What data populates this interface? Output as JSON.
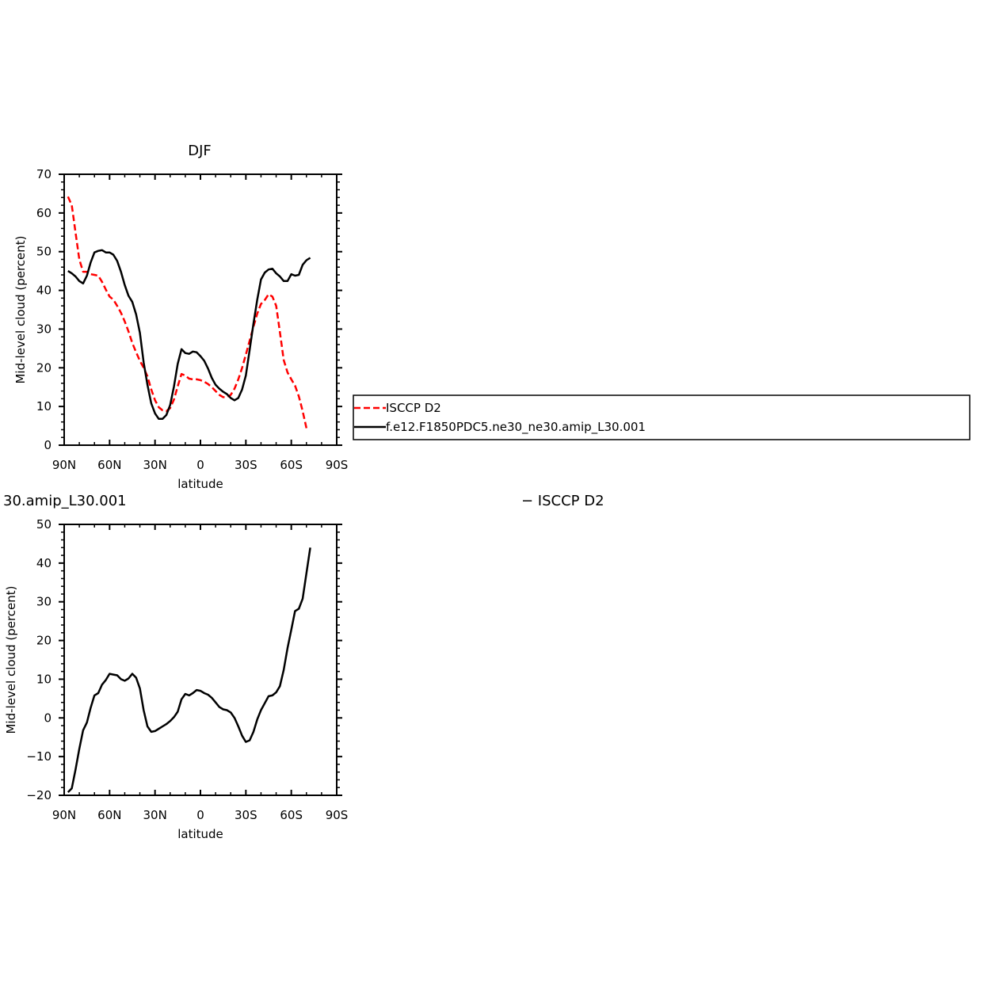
{
  "chart_data": [
    {
      "type": "line",
      "title": "DJF",
      "xlabel": "latitude",
      "ylabel": "Mid-level cloud (percent)",
      "xlim": [
        90,
        -90
      ],
      "ylim": [
        0,
        70
      ],
      "xticks": [
        90,
        60,
        30,
        0,
        -30,
        -60,
        -90
      ],
      "xtick_labels": [
        "90N",
        "60N",
        "30N",
        "0",
        "30S",
        "60S",
        "90S"
      ],
      "yticks": [
        0,
        10,
        20,
        30,
        40,
        50,
        60,
        70
      ],
      "ytick_labels": [
        "0",
        "10",
        "20",
        "30",
        "40",
        "50",
        "60",
        "70"
      ],
      "legend": {
        "placement": "right",
        "entries": [
          "ISCCP D2",
          "f.e12.F1850PDC5.ne30_ne30.amip_L30.001"
        ]
      },
      "series": [
        {
          "name": "ISCCP D2",
          "color": "#ff0000",
          "dash": "dashed",
          "x": [
            87.5,
            85,
            82.5,
            80,
            77.5,
            75,
            72.5,
            70,
            67.5,
            65,
            62.5,
            60,
            57.5,
            55,
            52.5,
            50,
            47.5,
            45,
            42.5,
            40,
            37.5,
            35,
            32.5,
            30,
            27.5,
            25,
            22.5,
            20,
            17.5,
            15,
            12.5,
            10,
            7.5,
            5,
            2.5,
            0,
            -2.5,
            -5,
            -7.5,
            -10,
            -12.5,
            -15,
            -17.5,
            -20,
            -22.5,
            -25,
            -27.5,
            -30,
            -32.5,
            -35,
            -37.5,
            -40,
            -42.5,
            -45,
            -47.5,
            -50,
            -52.5,
            -55,
            -57.5,
            -60,
            -62.5,
            -65,
            -67.5,
            -70,
            -72.5,
            -75,
            -77.5,
            -80,
            -82.5,
            -85,
            -87.5
          ],
          "y": [
            64.2,
            62,
            55,
            48,
            44.8,
            44.8,
            44.2,
            44,
            43.8,
            42.2,
            40.2,
            38.4,
            37.6,
            36,
            34.2,
            32,
            29.4,
            26.4,
            24,
            21.8,
            20,
            17.8,
            14.4,
            11.6,
            9.8,
            9,
            8.8,
            9.6,
            11.8,
            15.2,
            18.4,
            18,
            17.2,
            17,
            17,
            16.8,
            16.4,
            15.8,
            15,
            14,
            13,
            12.4,
            12.4,
            13,
            14.6,
            17,
            20,
            23.4,
            27,
            30.6,
            34,
            36.5,
            37.5,
            39,
            38.4,
            36,
            29.2,
            22,
            18.8,
            17,
            15.4,
            12.6,
            8.8,
            4.4,
            null,
            null,
            null,
            null,
            null,
            null,
            null
          ]
        },
        {
          "name": "f.e12.F1850PDC5.ne30_ne30.amip_L30.001",
          "color": "#000000",
          "dash": "solid",
          "x": [
            87.5,
            85,
            82.5,
            80,
            77.5,
            75,
            72.5,
            70,
            67.5,
            65,
            62.5,
            60,
            57.5,
            55,
            52.5,
            50,
            47.5,
            45,
            42.5,
            40,
            37.5,
            35,
            32.5,
            30,
            27.5,
            25,
            22.5,
            20,
            17.5,
            15,
            12.5,
            10,
            7.5,
            5,
            2.5,
            0,
            -2.5,
            -5,
            -7.5,
            -10,
            -12.5,
            -15,
            -17.5,
            -20,
            -22.5,
            -25,
            -27.5,
            -30,
            -32.5,
            -35,
            -37.5,
            -40,
            -42.5,
            -45,
            -47.5,
            -50,
            -52.5,
            -55,
            -57.5,
            -60,
            -62.5,
            -65,
            -67.5,
            -70,
            -72.5,
            -75,
            -77.5,
            -80,
            -82.5,
            -85,
            -87.5
          ],
          "y": [
            45,
            44.4,
            43.6,
            42.4,
            41.8,
            43.8,
            47.2,
            49.8,
            50.2,
            50.4,
            49.8,
            49.8,
            49.2,
            47.6,
            44.8,
            41.4,
            38.6,
            37,
            33.8,
            29,
            21.4,
            15.6,
            10.8,
            8.2,
            6.8,
            6.8,
            7.8,
            10.4,
            15.2,
            21,
            24.8,
            23.8,
            23.6,
            24.2,
            24,
            23,
            21.8,
            19.8,
            17.4,
            15.6,
            14.6,
            13.8,
            13.2,
            12.2,
            11.6,
            12.2,
            14.4,
            18,
            24.6,
            31.4,
            37.6,
            42.8,
            44.6,
            45.4,
            45.6,
            44.4,
            43.6,
            42.4,
            42.4,
            44.2,
            43.8,
            44,
            46.6,
            47.8,
            48.4,
            null,
            null,
            null,
            null,
            null,
            null
          ]
        }
      ]
    },
    {
      "type": "line",
      "title": "30.amip_L30.001",
      "right_title": "− ISCCP D2",
      "xlabel": "latitude",
      "ylabel": "Mid-level cloud (percent)",
      "xlim": [
        90,
        -90
      ],
      "ylim": [
        -20,
        50
      ],
      "xticks": [
        90,
        60,
        30,
        0,
        -30,
        -60,
        -90
      ],
      "xtick_labels": [
        "90N",
        "60N",
        "30N",
        "0",
        "30S",
        "60S",
        "90S"
      ],
      "yticks": [
        -20,
        -10,
        0,
        10,
        20,
        30,
        40,
        50
      ],
      "ytick_labels": [
        "−20",
        "−10",
        "0",
        "10",
        "20",
        "30",
        "40",
        "50"
      ],
      "series": [
        {
          "color": "#000000",
          "dash": "solid",
          "x": [
            87.5,
            85,
            82.5,
            80,
            77.5,
            75,
            72.5,
            70,
            67.5,
            65,
            62.5,
            60,
            57.5,
            55,
            52.5,
            50,
            47.5,
            45,
            42.5,
            40,
            37.5,
            35,
            32.5,
            30,
            27.5,
            25,
            22.5,
            20,
            17.5,
            15,
            12.5,
            10,
            7.5,
            5,
            2.5,
            0,
            -2.5,
            -5,
            -7.5,
            -10,
            -12.5,
            -15,
            -17.5,
            -20,
            -22.5,
            -25,
            -27.5,
            -30,
            -32.5,
            -35,
            -37.5,
            -40,
            -42.5,
            -45,
            -47.5,
            -50,
            -52.5,
            -55,
            -57.5,
            -60,
            -62.5,
            -65,
            -67.5,
            -70,
            -72.5,
            -75,
            -77.5,
            -80,
            -82.5,
            -85,
            -87.5
          ],
          "y": [
            -19.2,
            -18.2,
            -13.4,
            -8,
            -3.2,
            -1.2,
            2.6,
            5.8,
            6.4,
            8.6,
            9.8,
            11.4,
            11.2,
            11,
            10,
            9.6,
            10.2,
            11.4,
            10.4,
            7.6,
            2,
            -2.2,
            -3.6,
            -3.4,
            -2.8,
            -2.2,
            -1.6,
            -0.8,
            0.2,
            1.6,
            4.8,
            6.2,
            5.8,
            6.4,
            7.2,
            7,
            6.4,
            6,
            5.2,
            4,
            2.8,
            2.2,
            2,
            1.4,
            0,
            -2.2,
            -4.6,
            -6.2,
            -5.8,
            -3.6,
            -0.4,
            2,
            3.8,
            5.6,
            5.8,
            6.6,
            8.2,
            12.4,
            18,
            22.8,
            27.6,
            28.2,
            30.8,
            37.4,
            44,
            null,
            null,
            null,
            null,
            null,
            null
          ]
        }
      ]
    }
  ]
}
